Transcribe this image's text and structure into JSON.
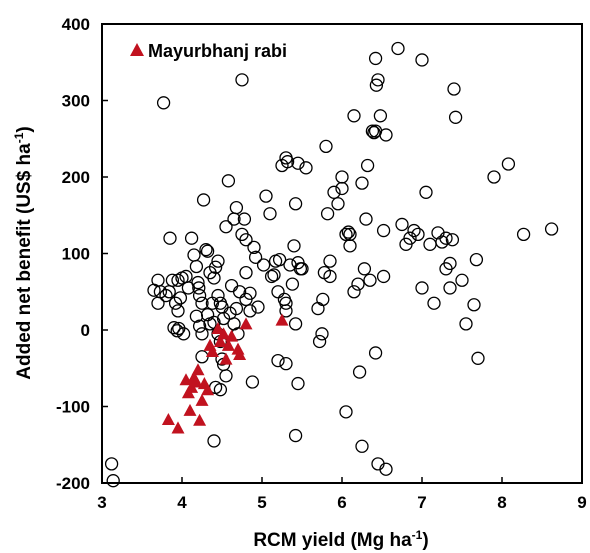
{
  "chart_data": {
    "type": "scatter",
    "xlabel": "RCM yield (Mg ha",
    "xlabel_sup": "-1",
    "xlabel_tail": ")",
    "ylabel": "Added net benefit (US$ ha",
    "ylabel_sup": "-1",
    "ylabel_tail": ")",
    "xlim": [
      3,
      9
    ],
    "ylim": [
      -200,
      400
    ],
    "xticks": [
      3,
      4,
      5,
      6,
      7,
      8,
      9
    ],
    "yticks": [
      -200,
      -100,
      0,
      100,
      200,
      300,
      400
    ],
    "grid": false,
    "legend_position": "top-left",
    "series": [
      {
        "name": "",
        "marker": "open-circle",
        "color": "#000000",
        "points": [
          [
            3.12,
            -175
          ],
          [
            3.14,
            -197
          ],
          [
            3.77,
            297
          ],
          [
            3.85,
            120
          ],
          [
            3.65,
            52
          ],
          [
            3.7,
            65
          ],
          [
            3.7,
            35
          ],
          [
            3.73,
            50
          ],
          [
            3.8,
            45
          ],
          [
            3.84,
            50
          ],
          [
            3.88,
            65
          ],
          [
            3.92,
            35
          ],
          [
            3.95,
            65
          ],
          [
            3.98,
            42
          ],
          [
            3.95,
            25
          ],
          [
            3.9,
            3
          ],
          [
            3.94,
            -1
          ],
          [
            3.96,
            2
          ],
          [
            4.0,
            68
          ],
          [
            4.05,
            70
          ],
          [
            4.02,
            -5
          ],
          [
            4.08,
            55
          ],
          [
            4.12,
            120
          ],
          [
            4.15,
            98
          ],
          [
            4.18,
            83
          ],
          [
            4.2,
            62
          ],
          [
            4.21,
            55
          ],
          [
            4.22,
            45
          ],
          [
            4.25,
            35
          ],
          [
            4.18,
            18
          ],
          [
            4.22,
            5
          ],
          [
            4.25,
            -5
          ],
          [
            4.27,
            170
          ],
          [
            4.3,
            105
          ],
          [
            4.32,
            103
          ],
          [
            4.35,
            75
          ],
          [
            4.38,
            35
          ],
          [
            4.32,
            20
          ],
          [
            4.35,
            8
          ],
          [
            4.4,
            68
          ],
          [
            4.42,
            82
          ],
          [
            4.45,
            90
          ],
          [
            4.45,
            45
          ],
          [
            4.48,
            35
          ],
          [
            4.5,
            30
          ],
          [
            4.52,
            15
          ],
          [
            4.4,
            10
          ],
          [
            4.45,
            -5
          ],
          [
            4.48,
            -15
          ],
          [
            4.5,
            -38
          ],
          [
            4.52,
            -45
          ],
          [
            4.55,
            -60
          ],
          [
            4.42,
            -75
          ],
          [
            4.48,
            -78
          ],
          [
            4.4,
            -145
          ],
          [
            4.25,
            -35
          ],
          [
            4.55,
            135
          ],
          [
            4.58,
            195
          ],
          [
            4.62,
            58
          ],
          [
            4.65,
            145
          ],
          [
            4.6,
            22
          ],
          [
            4.65,
            8
          ],
          [
            4.68,
            28
          ],
          [
            4.7,
            -5
          ],
          [
            4.72,
            50
          ],
          [
            4.68,
            160
          ],
          [
            4.75,
            125
          ],
          [
            4.78,
            145
          ],
          [
            4.75,
            327
          ],
          [
            4.8,
            118
          ],
          [
            4.8,
            75
          ],
          [
            4.8,
            40
          ],
          [
            4.85,
            48
          ],
          [
            4.85,
            25
          ],
          [
            4.9,
            108
          ],
          [
            4.92,
            95
          ],
          [
            4.88,
            -68
          ],
          [
            4.95,
            30
          ],
          [
            5.02,
            85
          ],
          [
            5.05,
            175
          ],
          [
            5.1,
            152
          ],
          [
            5.12,
            70
          ],
          [
            5.15,
            72
          ],
          [
            5.17,
            90
          ],
          [
            5.2,
            50
          ],
          [
            5.22,
            92
          ],
          [
            5.25,
            215
          ],
          [
            5.28,
            40
          ],
          [
            5.3,
            225
          ],
          [
            5.32,
            220
          ],
          [
            5.35,
            85
          ],
          [
            5.38,
            60
          ],
          [
            5.4,
            110
          ],
          [
            5.42,
            165
          ],
          [
            5.45,
            218
          ],
          [
            5.45,
            88
          ],
          [
            5.48,
            80
          ],
          [
            5.5,
            80
          ],
          [
            5.42,
            8
          ],
          [
            5.45,
            -70
          ],
          [
            5.42,
            -138
          ],
          [
            5.3,
            -44
          ],
          [
            5.3,
            25
          ],
          [
            5.3,
            35
          ],
          [
            5.2,
            -40
          ],
          [
            5.55,
            212
          ],
          [
            5.7,
            28
          ],
          [
            5.72,
            -15
          ],
          [
            5.75,
            -5
          ],
          [
            5.76,
            40
          ],
          [
            5.78,
            75
          ],
          [
            5.8,
            240
          ],
          [
            5.82,
            152
          ],
          [
            5.85,
            90
          ],
          [
            5.85,
            70
          ],
          [
            5.9,
            180
          ],
          [
            5.95,
            165
          ],
          [
            6.0,
            200
          ],
          [
            6.0,
            185
          ],
          [
            6.05,
            125
          ],
          [
            6.08,
            128
          ],
          [
            6.1,
            125
          ],
          [
            6.15,
            280
          ],
          [
            6.15,
            50
          ],
          [
            6.2,
            60
          ],
          [
            6.22,
            -55
          ],
          [
            6.25,
            192
          ],
          [
            6.28,
            80
          ],
          [
            6.3,
            145
          ],
          [
            6.32,
            215
          ],
          [
            6.35,
            65
          ],
          [
            6.38,
            260
          ],
          [
            6.4,
            258
          ],
          [
            6.42,
            355
          ],
          [
            6.43,
            320
          ],
          [
            6.45,
            327
          ],
          [
            6.48,
            280
          ],
          [
            6.42,
            -30
          ],
          [
            6.45,
            -175
          ],
          [
            6.52,
            70
          ],
          [
            6.52,
            130
          ],
          [
            6.55,
            255
          ],
          [
            6.55,
            -182
          ],
          [
            6.05,
            -107
          ],
          [
            6.25,
            -152
          ],
          [
            6.7,
            368
          ],
          [
            6.75,
            138
          ],
          [
            6.8,
            112
          ],
          [
            6.85,
            120
          ],
          [
            6.9,
            130
          ],
          [
            6.95,
            125
          ],
          [
            7.0,
            353
          ],
          [
            7.0,
            55
          ],
          [
            7.05,
            180
          ],
          [
            7.1,
            112
          ],
          [
            7.15,
            35
          ],
          [
            7.2,
            127
          ],
          [
            7.25,
            115
          ],
          [
            7.3,
            80
          ],
          [
            7.3,
            120
          ],
          [
            7.35,
            55
          ],
          [
            7.35,
            87
          ],
          [
            7.38,
            118
          ],
          [
            7.4,
            315
          ],
          [
            7.42,
            278
          ],
          [
            7.5,
            65
          ],
          [
            7.55,
            8
          ],
          [
            7.65,
            33
          ],
          [
            7.68,
            92
          ],
          [
            7.7,
            -37
          ],
          [
            7.9,
            200
          ],
          [
            8.08,
            217
          ],
          [
            8.27,
            125
          ],
          [
            8.62,
            132
          ],
          [
            6.1,
            110
          ],
          [
            6.42,
            260
          ]
        ]
      },
      {
        "name": "Mayurbhanj rabi",
        "marker": "filled-triangle",
        "color": "#C1121F",
        "points": [
          [
            3.83,
            -117
          ],
          [
            3.95,
            -128
          ],
          [
            4.05,
            -65
          ],
          [
            4.08,
            -82
          ],
          [
            4.1,
            -105
          ],
          [
            4.12,
            -75
          ],
          [
            4.15,
            -62
          ],
          [
            4.18,
            -68
          ],
          [
            4.2,
            -52
          ],
          [
            4.22,
            -118
          ],
          [
            4.25,
            -92
          ],
          [
            4.28,
            -70
          ],
          [
            4.32,
            -78
          ],
          [
            4.35,
            -20
          ],
          [
            4.38,
            -28
          ],
          [
            4.45,
            2
          ],
          [
            4.48,
            -15
          ],
          [
            4.52,
            -5
          ],
          [
            4.55,
            -38
          ],
          [
            4.58,
            -20
          ],
          [
            4.62,
            -8
          ],
          [
            4.7,
            -25
          ],
          [
            4.72,
            -32
          ],
          [
            4.8,
            8
          ],
          [
            5.25,
            13
          ]
        ]
      }
    ]
  }
}
